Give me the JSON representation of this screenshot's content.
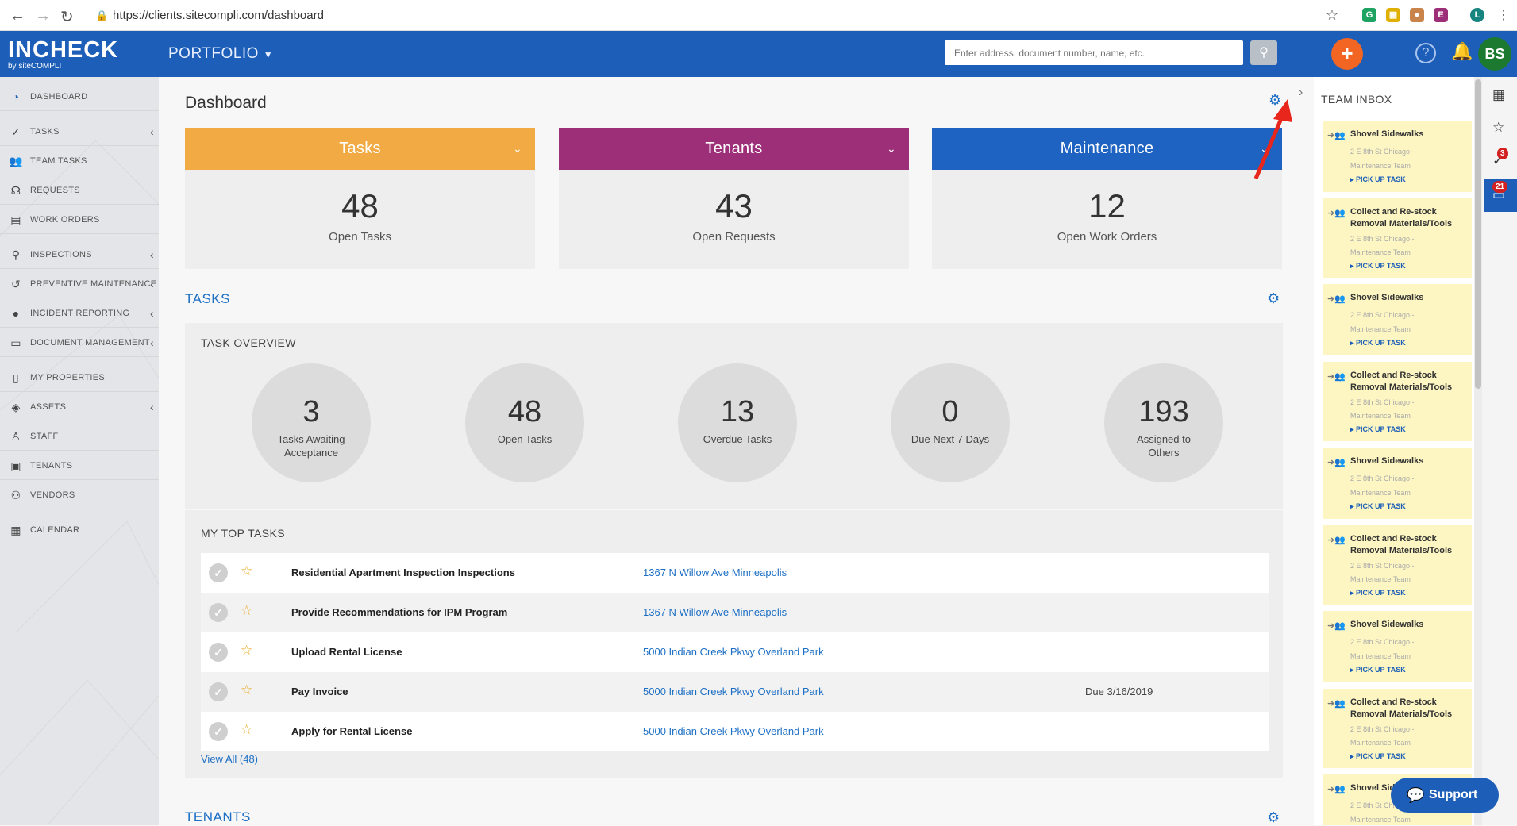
{
  "browser": {
    "url": "https://clients.sitecompli.com/dashboard"
  },
  "header": {
    "logo": "INCHECK",
    "logo_sub": "by siteCOMPLI",
    "portfolio": "PORTFOLIO",
    "search_placeholder": "Enter address, document number, name, etc.",
    "avatar": "BS"
  },
  "sidebar": {
    "items": [
      {
        "label": "DASHBOARD",
        "icon": "dashboard-icon"
      },
      {
        "label": "TASKS",
        "icon": "check-circle-icon"
      },
      {
        "label": "TEAM TASKS",
        "icon": "team-icon"
      },
      {
        "label": "REQUESTS",
        "icon": "headset-icon"
      },
      {
        "label": "WORK ORDERS",
        "icon": "work-orders-icon"
      },
      {
        "label": "INSPECTIONS",
        "icon": "magnifier-icon"
      },
      {
        "label": "PREVENTIVE MAINTENANCE",
        "icon": "refresh-icon"
      },
      {
        "label": "INCIDENT REPORTING",
        "icon": "alert-icon"
      },
      {
        "label": "DOCUMENT MANAGEMENT",
        "icon": "document-icon"
      },
      {
        "label": "MY PROPERTIES",
        "icon": "building-icon"
      },
      {
        "label": "ASSETS",
        "icon": "layers-icon"
      },
      {
        "label": "STAFF",
        "icon": "staff-icon"
      },
      {
        "label": "TENANTS",
        "icon": "tenant-icon"
      },
      {
        "label": "VENDORS",
        "icon": "vendor-icon"
      },
      {
        "label": "CALENDAR",
        "icon": "calendar-icon"
      }
    ]
  },
  "main": {
    "title": "Dashboard",
    "cards": [
      {
        "title": "Tasks",
        "value": "48",
        "label": "Open Tasks",
        "color": "#f2ab44"
      },
      {
        "title": "Tenants",
        "value": "43",
        "label": "Open Requests",
        "color": "#9c2f78"
      },
      {
        "title": "Maintenance",
        "value": "12",
        "label": "Open Work Orders",
        "color": "#1f63c2"
      }
    ],
    "tasks_section": "TASKS",
    "overview_title": "TASK OVERVIEW",
    "overview": [
      {
        "value": "3",
        "label": "Tasks Awaiting Acceptance"
      },
      {
        "value": "48",
        "label": "Open Tasks"
      },
      {
        "value": "13",
        "label": "Overdue Tasks"
      },
      {
        "value": "0",
        "label": "Due Next 7 Days"
      },
      {
        "value": "193",
        "label": "Assigned to Others"
      }
    ],
    "top_tasks_title": "MY TOP TASKS",
    "top_tasks": [
      {
        "name": "Residential Apartment Inspection Inspections",
        "address": "1367 N Willow Ave Minneapolis",
        "due": ""
      },
      {
        "name": "Provide Recommendations for IPM Program",
        "address": "1367 N Willow Ave Minneapolis",
        "due": ""
      },
      {
        "name": "Upload Rental License",
        "address": "5000 Indian Creek Pkwy Overland Park",
        "due": ""
      },
      {
        "name": "Pay Invoice",
        "address": "5000 Indian Creek Pkwy Overland Park",
        "due": "Due 3/16/2019"
      },
      {
        "name": "Apply for Rental License",
        "address": "5000 Indian Creek Pkwy Overland Park",
        "due": ""
      }
    ],
    "view_all": "View All (48)",
    "tenants_section": "TENANTS"
  },
  "inbox": {
    "title": "TEAM INBOX",
    "items": [
      {
        "title": "Shovel Sidewalks",
        "location": "2 E 8th St Chicago -",
        "team": "Maintenance Team",
        "action": "▸ PICK UP TASK"
      },
      {
        "title": "Collect and Re-stock Removal Materials/Tools",
        "location": "2 E 8th St Chicago -",
        "team": "Maintenance Team",
        "action": "▸ PICK UP TASK"
      },
      {
        "title": "Shovel Sidewalks",
        "location": "2 E 8th St Chicago -",
        "team": "Maintenance Team",
        "action": "▸ PICK UP TASK"
      },
      {
        "title": "Collect and Re-stock Removal Materials/Tools",
        "location": "2 E 8th St Chicago -",
        "team": "Maintenance Team",
        "action": "▸ PICK UP TASK"
      },
      {
        "title": "Shovel Sidewalks",
        "location": "2 E 8th St Chicago -",
        "team": "Maintenance Team",
        "action": "▸ PICK UP TASK"
      },
      {
        "title": "Collect and Re-stock Removal Materials/Tools",
        "location": "2 E 8th St Chicago -",
        "team": "Maintenance Team",
        "action": "▸ PICK UP TASK"
      },
      {
        "title": "Shovel Sidewalks",
        "location": "2 E 8th St Chicago -",
        "team": "Maintenance Team",
        "action": "▸ PICK UP TASK"
      },
      {
        "title": "Collect and Re-stock Removal Materials/Tools",
        "location": "2 E 8th St Chicago -",
        "team": "Maintenance Team",
        "action": "▸ PICK UP TASK"
      },
      {
        "title": "Shovel Sidewalks",
        "location": "2 E 8th St Chicago -",
        "team": "Maintenance Team",
        "action": ""
      }
    ]
  },
  "rail": {
    "tasks_badge": "3",
    "inbox_badge": "21"
  },
  "support": "Support"
}
